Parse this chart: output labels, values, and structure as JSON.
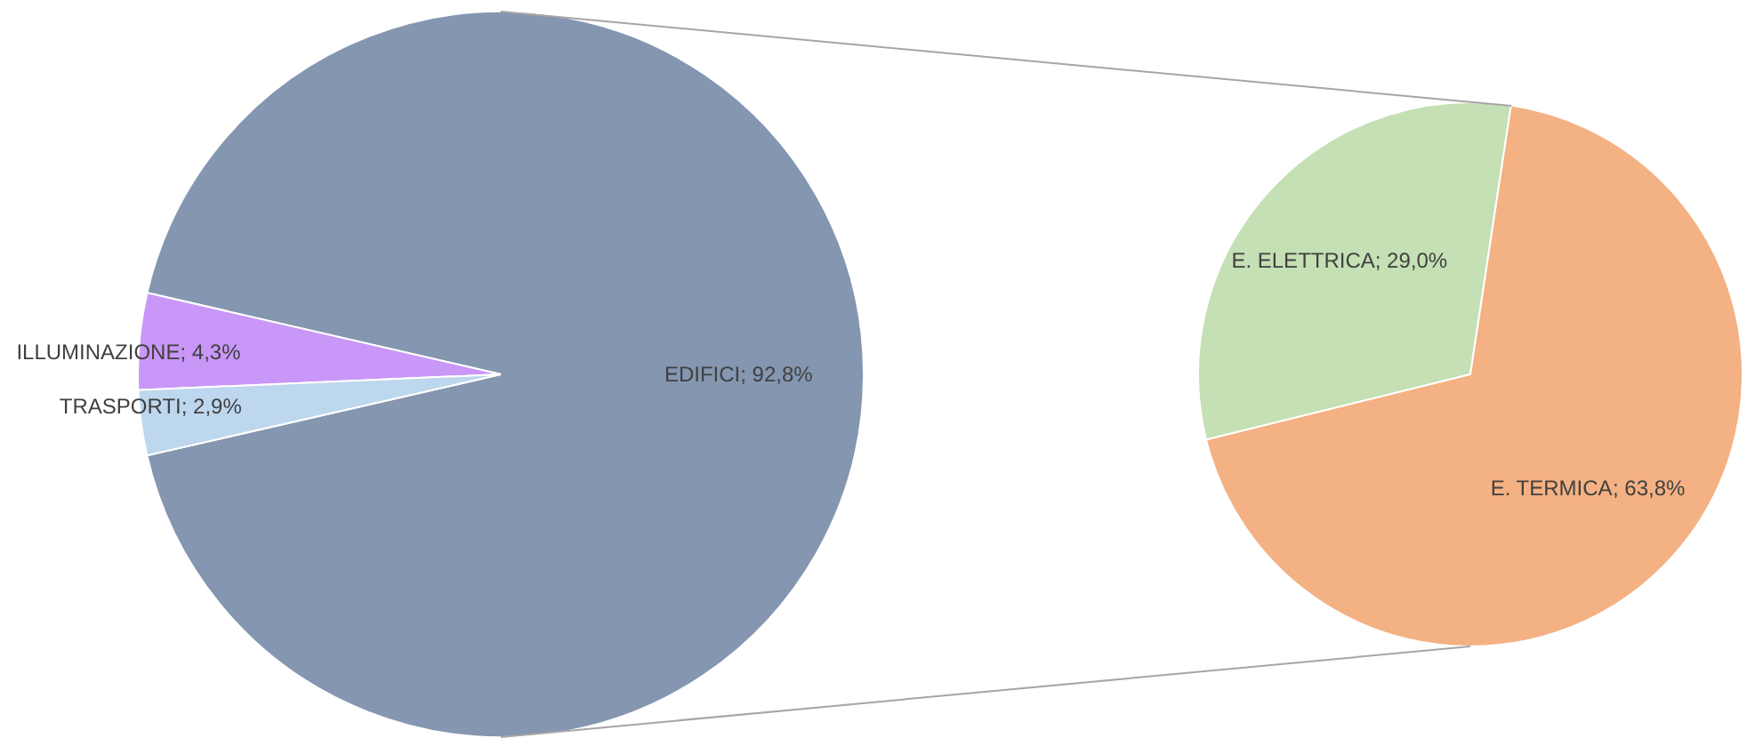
{
  "chart_data": [
    {
      "type": "pie",
      "categories": [
        "EDIFICI",
        "ILLUMINAZIONE",
        "TRASPORTI"
      ],
      "values": [
        92.8,
        4.3,
        2.9
      ],
      "colors": [
        "#8496b0",
        "#c997f7",
        "#bdd7ee"
      ],
      "value_labels": [
        "; 92,8%",
        "; 4,3%",
        "; 2,9%"
      ]
    },
    {
      "type": "pie",
      "categories": [
        "E. ELETTRICA",
        "E. TERMICA"
      ],
      "values": [
        29.0,
        63.8
      ],
      "colors": [
        "#c5e0b4",
        "#f4b183"
      ],
      "value_labels": [
        "; 29,0%",
        "; 63,8%"
      ]
    }
  ]
}
